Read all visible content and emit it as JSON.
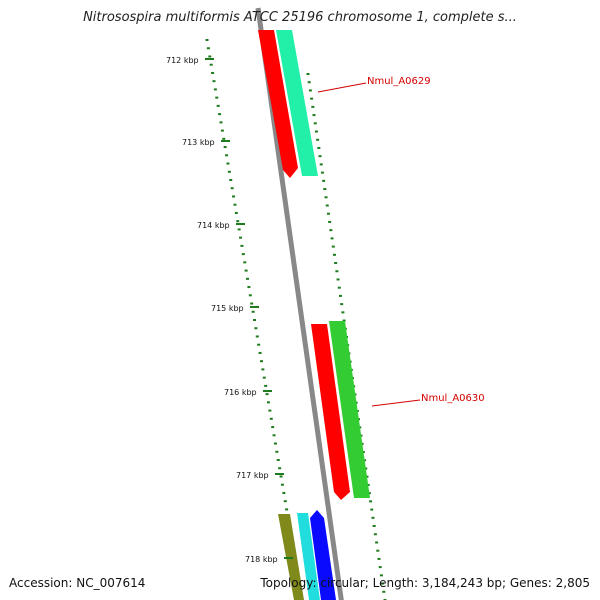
{
  "title": "Nitrosospira multiformis ATCC 25196 chromosome 1, complete s...",
  "accession": "Accession: NC_007614",
  "summary": "Topology: circular; Length: 3,184,243 bp; Genes: 2,805",
  "ticks": [
    "712 kbp",
    "713 kbp",
    "714 kbp",
    "715 kbp",
    "716 kbp",
    "717 kbp",
    "718 kbp"
  ],
  "genes": [
    {
      "label": "Nmul_A0629"
    },
    {
      "label": "Nmul_A0630"
    }
  ],
  "colors": {
    "backbone": "#888888",
    "tick": "#1d7a1d",
    "gene_red": "#ff0000",
    "gene_mint": "#22f0a8",
    "gene_green": "#33cc33",
    "gene_olive": "#7f8a1a",
    "gene_cyan": "#22dddd",
    "gene_blue": "#0a0aff",
    "label_red": "#d40000"
  }
}
